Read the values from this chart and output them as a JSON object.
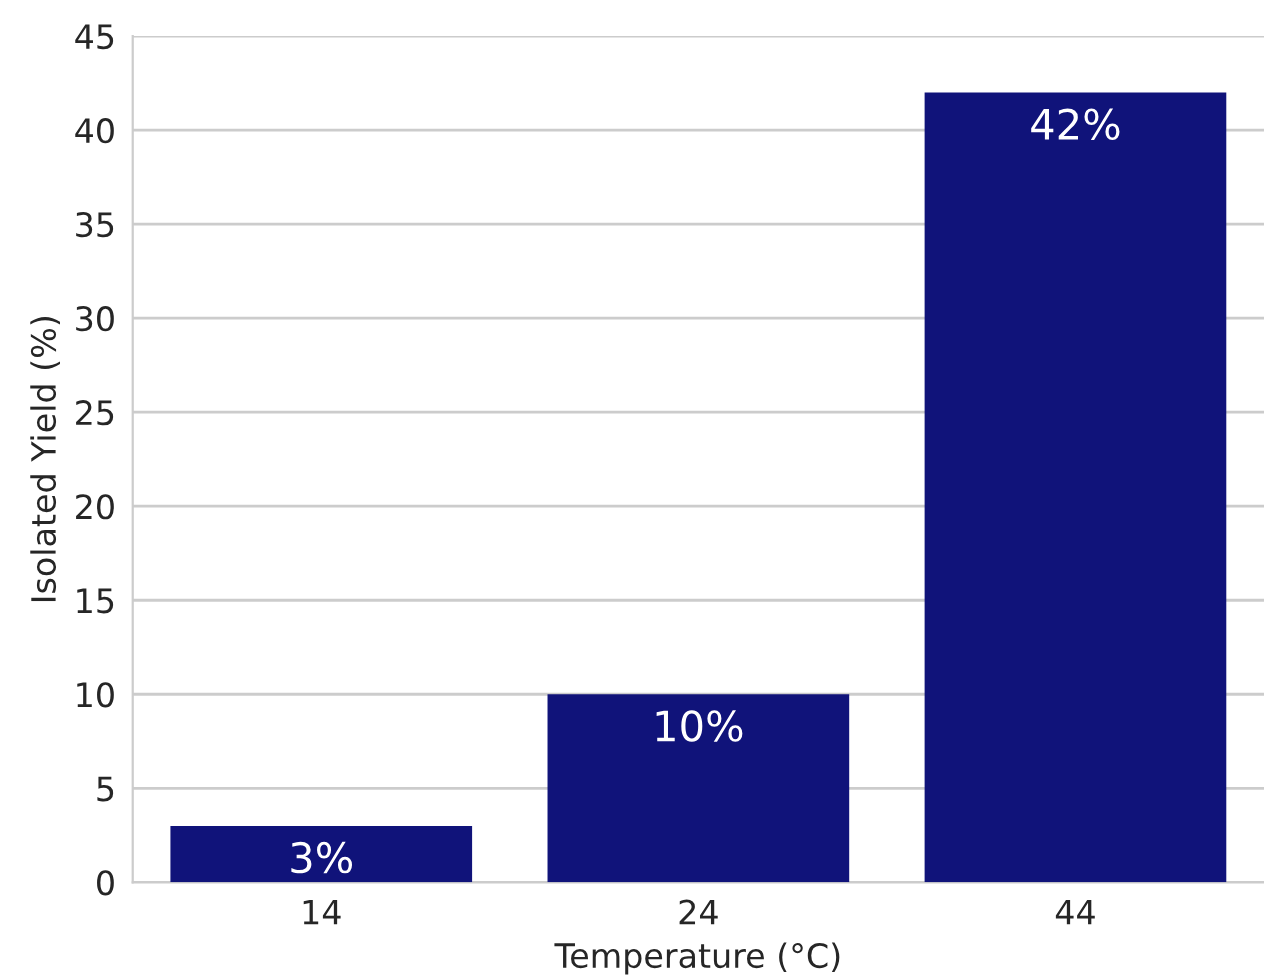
{
  "chart_data": {
    "type": "bar",
    "xlabel": "Temperature (°C)",
    "ylabel": "Isolated Yield (%)",
    "categories": [
      "14",
      "24",
      "44"
    ],
    "values": [
      3,
      10,
      42
    ],
    "value_labels": [
      "3%",
      "10%",
      "42%"
    ],
    "color": "#10137a",
    "ylim": [
      0,
      45
    ],
    "yticks": [
      0,
      5,
      10,
      15,
      20,
      25,
      30,
      35,
      40,
      45
    ],
    "grid": "y",
    "legend": false
  }
}
